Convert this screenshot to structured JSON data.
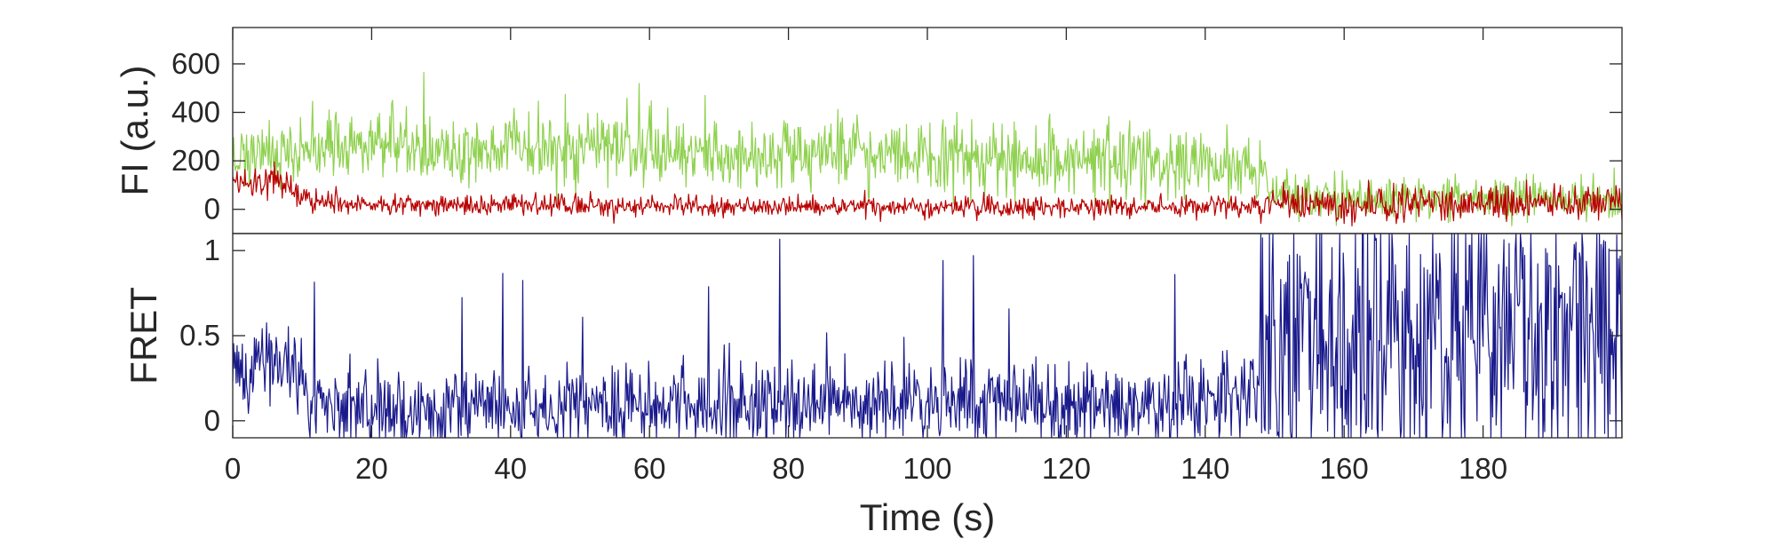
{
  "chart_data": [
    {
      "type": "line",
      "panel": "top",
      "ylabel": "FI (a.u.)",
      "xlabel": "",
      "xlim": [
        0,
        200
      ],
      "ylim": [
        -100,
        750
      ],
      "yticks": [
        0,
        200,
        400,
        600
      ],
      "ytick_labels": [
        "0",
        "200",
        "400",
        "600"
      ],
      "grid": false,
      "series": [
        {
          "color": "#8fd14f",
          "x": [
            0,
            5,
            10,
            15,
            20,
            22,
            25,
            30,
            35,
            40,
            45,
            50,
            55,
            60,
            65,
            70,
            75,
            80,
            85,
            90,
            95,
            100,
            105,
            110,
            115,
            120,
            125,
            130,
            135,
            140,
            145,
            148,
            150,
            155,
            160,
            165,
            170,
            175,
            180,
            185,
            190,
            195,
            200
          ],
          "y": [
            230,
            220,
            240,
            260,
            270,
            290,
            265,
            250,
            245,
            255,
            240,
            245,
            255,
            240,
            230,
            235,
            225,
            235,
            230,
            230,
            210,
            220,
            200,
            210,
            190,
            195,
            205,
            195,
            175,
            190,
            170,
            140,
            80,
            50,
            45,
            40,
            50,
            55,
            45,
            50,
            45,
            35,
            40
          ]
        },
        {
          "color": "#b80000",
          "x": [
            0,
            3,
            6,
            8,
            10,
            12,
            15,
            20,
            30,
            40,
            50,
            60,
            70,
            80,
            90,
            100,
            110,
            120,
            130,
            140,
            148,
            150,
            160,
            170,
            180,
            190,
            200
          ],
          "y": [
            110,
            105,
            115,
            105,
            50,
            30,
            25,
            20,
            20,
            18,
            15,
            15,
            12,
            12,
            12,
            10,
            10,
            10,
            10,
            12,
            20,
            15,
            18,
            22,
            25,
            28,
            30
          ]
        }
      ]
    },
    {
      "type": "line",
      "panel": "bottom",
      "ylabel": "FRET",
      "xlabel": "Time (s)",
      "xlim": [
        0,
        200
      ],
      "ylim": [
        -0.1,
        1.1
      ],
      "yticks": [
        0,
        0.5,
        1
      ],
      "ytick_labels": [
        "0",
        "0.5",
        "1"
      ],
      "xticks": [
        0,
        20,
        40,
        60,
        80,
        100,
        120,
        140,
        160,
        180
      ],
      "xtick_labels": [
        "0",
        "20",
        "40",
        "60",
        "80",
        "100",
        "120",
        "140",
        "160",
        "180"
      ],
      "grid": false,
      "series": [
        {
          "color": "#1a1a8c",
          "x": [
            0,
            2,
            4,
            6,
            8,
            10,
            10.5,
            15,
            20,
            30,
            40,
            50,
            60,
            70,
            80,
            90,
            100,
            110,
            120,
            130,
            140,
            145,
            148,
            150,
            160,
            170,
            180,
            190,
            200
          ],
          "y": [
            0.35,
            0.3,
            0.33,
            0.37,
            0.3,
            0.3,
            0.05,
            0.07,
            0.08,
            0.08,
            0.07,
            0.08,
            0.09,
            0.08,
            0.1,
            0.09,
            0.1,
            0.1,
            0.1,
            0.1,
            0.12,
            0.15,
            0.25,
            0.45,
            0.5,
            0.5,
            0.5,
            0.48,
            0.5
          ]
        }
      ]
    }
  ]
}
